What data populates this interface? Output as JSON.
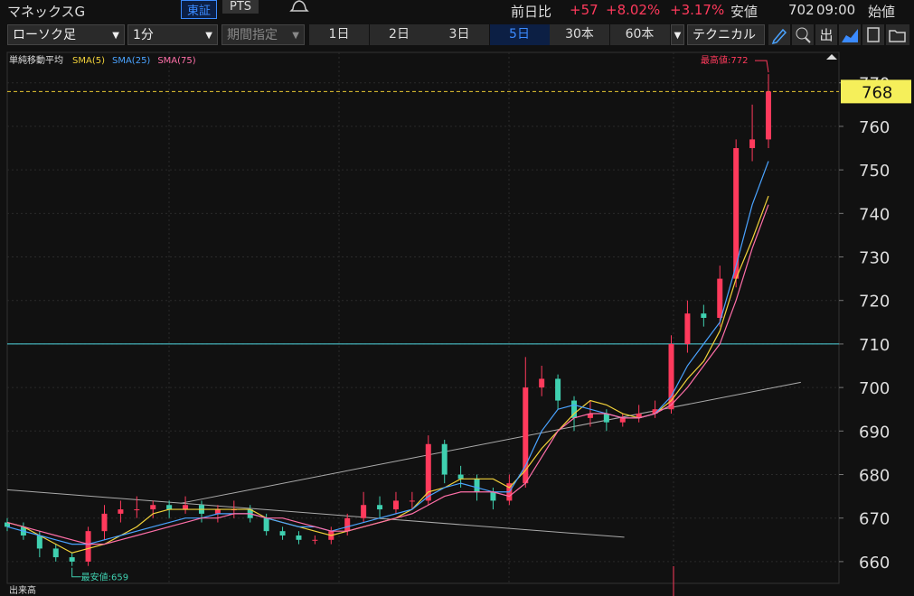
{
  "header": {
    "title": "マネックスG",
    "tabs": [
      "東証",
      "PTS"
    ],
    "change_label": "前日比",
    "change": "+57",
    "change_pct": "+8.02%",
    "change_pct2": "+3.17%",
    "low_label": "安値",
    "low": "702",
    "time": "09:00",
    "open_label": "始値"
  },
  "toolbar": {
    "chart_type": "ローソク足",
    "interval": "1分",
    "period": "期間指定",
    "ranges": [
      "1日",
      "2日",
      "3日",
      "5日",
      "30本",
      "60本"
    ],
    "selected_range": 3,
    "technical": "テクニカル",
    "icon_labels": [
      "出"
    ]
  },
  "chart_data": {
    "type": "candlestick",
    "legend_title": "単純移動平均",
    "open": [
      669,
      668,
      666,
      663,
      661,
      660,
      667,
      671,
      672,
      672,
      673,
      672,
      673,
      671,
      672,
      672,
      670,
      667,
      666,
      665,
      665,
      667,
      670,
      673,
      672,
      674,
      674,
      687,
      680,
      679,
      676,
      674,
      678,
      700,
      702,
      697,
      693,
      694,
      692,
      693,
      694,
      695,
      710,
      717,
      716,
      725,
      755,
      757
    ],
    "high": [
      670,
      669,
      667,
      664,
      662,
      668,
      673,
      674,
      675,
      674,
      674,
      675,
      674,
      673,
      674,
      673,
      671,
      668,
      667,
      666,
      668,
      671,
      676,
      675,
      676,
      676,
      689,
      688,
      682,
      680,
      677,
      680,
      707,
      705,
      703,
      698,
      697,
      695,
      694,
      696,
      697,
      712,
      720,
      719,
      728,
      757,
      765,
      772
    ],
    "low": [
      667,
      665,
      661,
      660,
      659,
      659,
      665,
      669,
      670,
      670,
      670,
      671,
      669,
      669,
      670,
      669,
      666,
      665,
      664,
      664,
      664,
      666,
      669,
      670,
      671,
      672,
      673,
      678,
      677,
      674,
      672,
      673,
      677,
      698,
      695,
      690,
      691,
      690,
      691,
      692,
      693,
      694,
      708,
      714,
      714,
      723,
      752,
      755
    ],
    "close": [
      668,
      666,
      663,
      661,
      660,
      667,
      671,
      672,
      672,
      673,
      672,
      673,
      671,
      672,
      672,
      670,
      667,
      666,
      665,
      665,
      667,
      670,
      673,
      672,
      674,
      674,
      687,
      680,
      679,
      676,
      674,
      678,
      700,
      702,
      697,
      693,
      694,
      692,
      693,
      694,
      695,
      710,
      717,
      716,
      725,
      755,
      757,
      768
    ],
    "up_color": "#ff3a5c",
    "down_color": "#3fd0b0",
    "series": [
      {
        "name": "SMA(5)",
        "color": "#f2d23a",
        "values": [
          669,
          668,
          666,
          664,
          662,
          663,
          664,
          666,
          668,
          671,
          672,
          672,
          672,
          672,
          672,
          672,
          670,
          669,
          668,
          667,
          666,
          667,
          668,
          669,
          670,
          672,
          676,
          677,
          679,
          679,
          679,
          677,
          681,
          686,
          690,
          694,
          697,
          696,
          694,
          693,
          694,
          697,
          702,
          706,
          713,
          725,
          734,
          744
        ]
      },
      {
        "name": "SMA(25)",
        "color": "#4aa3ff",
        "values": [
          668,
          667,
          666,
          665,
          664,
          664,
          665,
          666,
          667,
          668,
          669,
          670,
          670,
          671,
          671,
          671,
          670,
          669,
          668,
          668,
          667,
          668,
          669,
          670,
          671,
          672,
          675,
          677,
          678,
          677,
          676,
          676,
          682,
          690,
          695,
          696,
          695,
          694,
          693,
          693,
          694,
          698,
          705,
          710,
          715,
          728,
          742,
          752
        ]
      },
      {
        "name": "SMA(75)",
        "color": "#ff6fa8",
        "values": [
          669,
          668,
          667,
          666,
          665,
          664,
          664,
          665,
          666,
          667,
          668,
          669,
          670,
          670,
          671,
          671,
          670,
          670,
          669,
          668,
          667,
          667,
          668,
          669,
          670,
          671,
          673,
          675,
          676,
          676,
          676,
          675,
          678,
          684,
          690,
          693,
          694,
          694,
          693,
          693,
          694,
          696,
          700,
          705,
          710,
          720,
          732,
          742
        ]
      }
    ],
    "ylim": [
      655,
      777
    ],
    "yticks": [
      660,
      670,
      680,
      690,
      700,
      710,
      720,
      730,
      740,
      750,
      760,
      770
    ],
    "last_price": 768,
    "level": 710,
    "trendlines": [
      {
        "x": [
          0,
          38.1
        ],
        "y": [
          676.5,
          665.6
        ]
      },
      {
        "x": [
          10.7,
          49
        ],
        "y": [
          673.4,
          701.2
        ]
      }
    ],
    "annotations": [
      {
        "text": "最高値:772",
        "x": 47,
        "y": 772
      },
      {
        "text": "最安値:659",
        "x": 4,
        "y": 659
      }
    ],
    "volume_label": "出来高"
  }
}
